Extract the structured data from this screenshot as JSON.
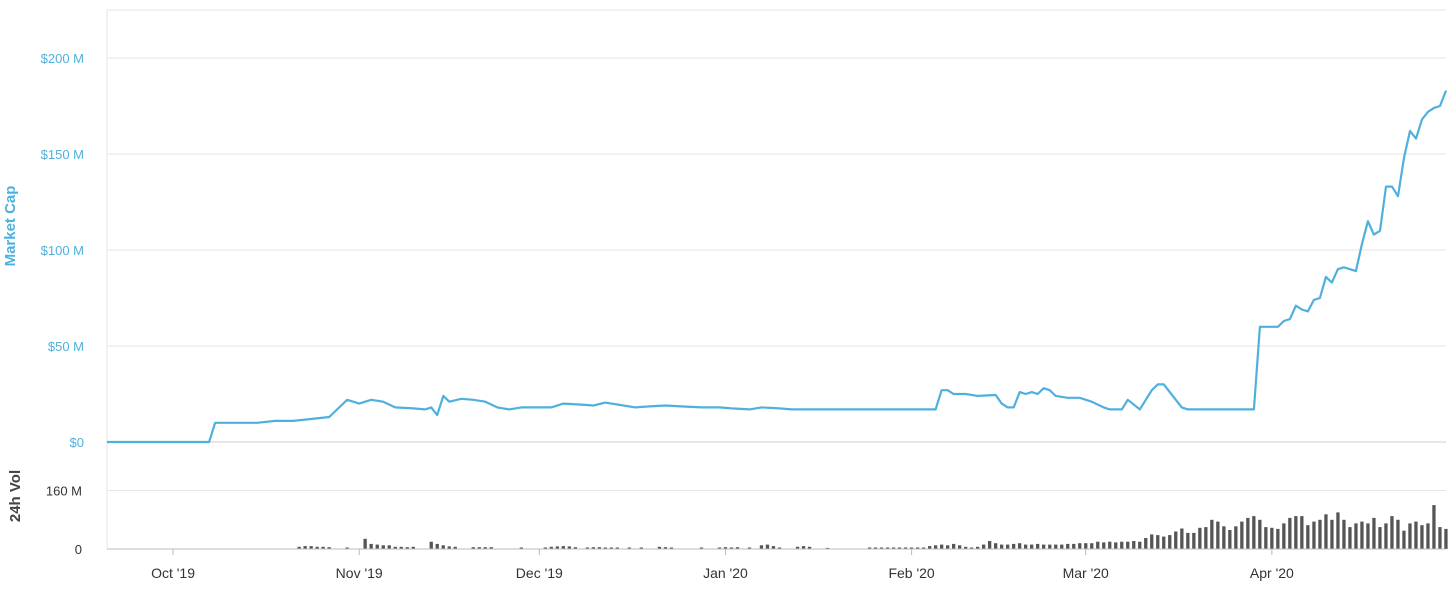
{
  "chart_data": [
    {
      "type": "line",
      "title": "",
      "ylabel": "Market Cap",
      "ylim": [
        0,
        225
      ],
      "y_unit": "$M",
      "y_ticks": [
        {
          "value": 0,
          "label": "$0"
        },
        {
          "value": 50,
          "label": "$50 M"
        },
        {
          "value": 100,
          "label": "$100 M"
        },
        {
          "value": 150,
          "label": "$150 M"
        },
        {
          "value": 200,
          "label": "$200 M"
        }
      ],
      "x_ticks": [
        {
          "date": "2019-10-01",
          "label": "Oct '19"
        },
        {
          "date": "2019-11-01",
          "label": "Nov '19"
        },
        {
          "date": "2019-12-01",
          "label": "Dec '19"
        },
        {
          "date": "2020-01-01",
          "label": "Jan '20"
        },
        {
          "date": "2020-02-01",
          "label": "Feb '20"
        },
        {
          "date": "2020-03-01",
          "label": "Mar '20"
        },
        {
          "date": "2020-04-01",
          "label": "Apr '20"
        }
      ],
      "x_range": [
        "2019-09-20",
        "2020-04-30"
      ],
      "grid": true,
      "color": "#4fb0dd",
      "series": [
        {
          "points": [
            [
              "2019-09-20",
              0
            ],
            [
              "2019-10-07",
              0
            ],
            [
              "2019-10-08",
              10
            ],
            [
              "2019-10-15",
              10
            ],
            [
              "2019-10-18",
              11
            ],
            [
              "2019-10-21",
              11
            ],
            [
              "2019-10-24",
              12
            ],
            [
              "2019-10-27",
              13
            ],
            [
              "2019-10-29",
              19
            ],
            [
              "2019-10-30",
              22
            ],
            [
              "2019-11-01",
              20
            ],
            [
              "2019-11-03",
              22
            ],
            [
              "2019-11-05",
              21
            ],
            [
              "2019-11-07",
              18
            ],
            [
              "2019-11-10",
              17.5
            ],
            [
              "2019-11-12",
              17
            ],
            [
              "2019-11-13",
              18
            ],
            [
              "2019-11-14",
              14
            ],
            [
              "2019-11-15",
              24
            ],
            [
              "2019-11-16",
              21
            ],
            [
              "2019-11-18",
              22.5
            ],
            [
              "2019-11-20",
              22
            ],
            [
              "2019-11-22",
              21
            ],
            [
              "2019-11-24",
              18
            ],
            [
              "2019-11-26",
              17
            ],
            [
              "2019-11-28",
              18
            ],
            [
              "2019-12-01",
              18
            ],
            [
              "2019-12-03",
              18
            ],
            [
              "2019-12-05",
              20
            ],
            [
              "2019-12-08",
              19.5
            ],
            [
              "2019-12-10",
              19
            ],
            [
              "2019-12-12",
              20.5
            ],
            [
              "2019-12-15",
              19
            ],
            [
              "2019-12-17",
              18
            ],
            [
              "2019-12-19",
              18.5
            ],
            [
              "2019-12-22",
              19
            ],
            [
              "2019-12-25",
              18.5
            ],
            [
              "2019-12-28",
              18
            ],
            [
              "2019-12-31",
              18
            ],
            [
              "2020-01-02",
              17.5
            ],
            [
              "2020-01-05",
              17
            ],
            [
              "2020-01-07",
              18
            ],
            [
              "2020-01-10",
              17.5
            ],
            [
              "2020-01-12",
              17
            ],
            [
              "2020-01-15",
              17
            ],
            [
              "2020-01-22",
              17
            ],
            [
              "2020-01-28",
              17
            ],
            [
              "2020-01-30",
              17
            ],
            [
              "2020-02-01",
              17
            ],
            [
              "2020-02-03",
              17
            ],
            [
              "2020-02-05",
              17
            ],
            [
              "2020-02-06",
              27
            ],
            [
              "2020-02-07",
              27
            ],
            [
              "2020-02-08",
              25
            ],
            [
              "2020-02-10",
              25
            ],
            [
              "2020-02-12",
              24
            ],
            [
              "2020-02-15",
              24.5
            ],
            [
              "2020-02-16",
              20
            ],
            [
              "2020-02-17",
              18
            ],
            [
              "2020-02-18",
              18
            ],
            [
              "2020-02-19",
              26
            ],
            [
              "2020-02-20",
              25
            ],
            [
              "2020-02-21",
              26
            ],
            [
              "2020-02-22",
              25
            ],
            [
              "2020-02-23",
              28
            ],
            [
              "2020-02-24",
              27
            ],
            [
              "2020-02-25",
              24
            ],
            [
              "2020-02-27",
              23
            ],
            [
              "2020-02-29",
              23
            ],
            [
              "2020-03-02",
              21
            ],
            [
              "2020-03-04",
              18
            ],
            [
              "2020-03-05",
              17
            ],
            [
              "2020-03-07",
              17
            ],
            [
              "2020-03-08",
              22
            ],
            [
              "2020-03-10",
              17
            ],
            [
              "2020-03-12",
              27
            ],
            [
              "2020-03-13",
              30
            ],
            [
              "2020-03-14",
              30
            ],
            [
              "2020-03-16",
              22
            ],
            [
              "2020-03-17",
              18
            ],
            [
              "2020-03-18",
              17
            ],
            [
              "2020-03-25",
              17
            ],
            [
              "2020-03-29",
              17
            ],
            [
              "2020-03-30",
              60
            ],
            [
              "2020-04-01",
              60
            ],
            [
              "2020-04-02",
              60
            ],
            [
              "2020-04-03",
              63
            ],
            [
              "2020-04-04",
              64
            ],
            [
              "2020-04-05",
              71
            ],
            [
              "2020-04-06",
              69
            ],
            [
              "2020-04-07",
              68
            ],
            [
              "2020-04-08",
              74
            ],
            [
              "2020-04-09",
              75
            ],
            [
              "2020-04-10",
              86
            ],
            [
              "2020-04-11",
              83
            ],
            [
              "2020-04-12",
              90
            ],
            [
              "2020-04-13",
              91
            ],
            [
              "2020-04-14",
              90
            ],
            [
              "2020-04-15",
              89
            ],
            [
              "2020-04-16",
              103
            ],
            [
              "2020-04-17",
              115
            ],
            [
              "2020-04-18",
              108
            ],
            [
              "2020-04-19",
              110
            ],
            [
              "2020-04-20",
              133
            ],
            [
              "2020-04-21",
              133
            ],
            [
              "2020-04-22",
              128
            ],
            [
              "2020-04-23",
              148
            ],
            [
              "2020-04-24",
              162
            ],
            [
              "2020-04-25",
              158
            ],
            [
              "2020-04-26",
              168
            ],
            [
              "2020-04-27",
              172
            ],
            [
              "2020-04-28",
              174
            ],
            [
              "2020-04-29",
              175
            ],
            [
              "2020-04-30",
              183
            ]
          ]
        }
      ]
    },
    {
      "type": "bar",
      "ylabel": "24h Vol",
      "ylim": [
        0,
        290
      ],
      "y_unit": "M",
      "y_ticks": [
        {
          "value": 0,
          "label": "0"
        },
        {
          "value": 160,
          "label": "160 M"
        }
      ],
      "color": "#555555",
      "bars": [
        [
          "2019-10-22",
          6
        ],
        [
          "2019-10-23",
          8
        ],
        [
          "2019-10-24",
          8
        ],
        [
          "2019-10-25",
          6
        ],
        [
          "2019-10-26",
          6
        ],
        [
          "2019-10-27",
          5
        ],
        [
          "2019-10-30",
          4
        ],
        [
          "2019-11-02",
          28
        ],
        [
          "2019-11-03",
          14
        ],
        [
          "2019-11-04",
          12
        ],
        [
          "2019-11-05",
          10
        ],
        [
          "2019-11-06",
          10
        ],
        [
          "2019-11-07",
          6
        ],
        [
          "2019-11-08",
          6
        ],
        [
          "2019-11-09",
          5
        ],
        [
          "2019-11-10",
          6
        ],
        [
          "2019-11-13",
          20
        ],
        [
          "2019-11-14",
          14
        ],
        [
          "2019-11-15",
          10
        ],
        [
          "2019-11-16",
          7
        ],
        [
          "2019-11-17",
          6
        ],
        [
          "2019-11-20",
          5
        ],
        [
          "2019-11-21",
          5
        ],
        [
          "2019-11-22",
          5
        ],
        [
          "2019-11-23",
          5
        ],
        [
          "2019-11-28",
          4
        ],
        [
          "2019-12-02",
          4
        ],
        [
          "2019-12-03",
          6
        ],
        [
          "2019-12-04",
          7
        ],
        [
          "2019-12-05",
          8
        ],
        [
          "2019-12-06",
          7
        ],
        [
          "2019-12-07",
          5
        ],
        [
          "2019-12-09",
          4
        ],
        [
          "2019-12-10",
          5
        ],
        [
          "2019-12-11",
          5
        ],
        [
          "2019-12-12",
          4
        ],
        [
          "2019-12-13",
          4
        ],
        [
          "2019-12-14",
          4
        ],
        [
          "2019-12-16",
          4
        ],
        [
          "2019-12-18",
          4
        ],
        [
          "2019-12-21",
          6
        ],
        [
          "2019-12-22",
          5
        ],
        [
          "2019-12-23",
          4
        ],
        [
          "2019-12-28",
          4
        ],
        [
          "2019-12-31",
          4
        ],
        [
          "2020-01-01",
          5
        ],
        [
          "2020-01-02",
          4
        ],
        [
          "2020-01-03",
          5
        ],
        [
          "2020-01-05",
          4
        ],
        [
          "2020-01-07",
          10
        ],
        [
          "2020-01-08",
          12
        ],
        [
          "2020-01-09",
          8
        ],
        [
          "2020-01-10",
          4
        ],
        [
          "2020-01-13",
          6
        ],
        [
          "2020-01-14",
          8
        ],
        [
          "2020-01-15",
          6
        ],
        [
          "2020-01-18",
          3
        ],
        [
          "2020-01-25",
          4
        ],
        [
          "2020-01-26",
          4
        ],
        [
          "2020-01-27",
          4
        ],
        [
          "2020-01-28",
          4
        ],
        [
          "2020-01-29",
          4
        ],
        [
          "2020-01-30",
          4
        ],
        [
          "2020-01-31",
          4
        ],
        [
          "2020-02-01",
          4
        ],
        [
          "2020-02-02",
          4
        ],
        [
          "2020-02-03",
          4
        ],
        [
          "2020-02-04",
          8
        ],
        [
          "2020-02-05",
          10
        ],
        [
          "2020-02-06",
          12
        ],
        [
          "2020-02-07",
          10
        ],
        [
          "2020-02-08",
          14
        ],
        [
          "2020-02-09",
          10
        ],
        [
          "2020-02-10",
          6
        ],
        [
          "2020-02-11",
          4
        ],
        [
          "2020-02-12",
          6
        ],
        [
          "2020-02-13",
          12
        ],
        [
          "2020-02-14",
          22
        ],
        [
          "2020-02-15",
          16
        ],
        [
          "2020-02-16",
          12
        ],
        [
          "2020-02-17",
          12
        ],
        [
          "2020-02-18",
          14
        ],
        [
          "2020-02-19",
          16
        ],
        [
          "2020-02-20",
          12
        ],
        [
          "2020-02-21",
          12
        ],
        [
          "2020-02-22",
          14
        ],
        [
          "2020-02-23",
          12
        ],
        [
          "2020-02-24",
          12
        ],
        [
          "2020-02-25",
          12
        ],
        [
          "2020-02-26",
          12
        ],
        [
          "2020-02-27",
          14
        ],
        [
          "2020-02-28",
          14
        ],
        [
          "2020-02-29",
          16
        ],
        [
          "2020-03-01",
          16
        ],
        [
          "2020-03-02",
          16
        ],
        [
          "2020-03-03",
          20
        ],
        [
          "2020-03-04",
          18
        ],
        [
          "2020-03-05",
          20
        ],
        [
          "2020-03-06",
          18
        ],
        [
          "2020-03-07",
          20
        ],
        [
          "2020-03-08",
          20
        ],
        [
          "2020-03-09",
          22
        ],
        [
          "2020-03-10",
          20
        ],
        [
          "2020-03-11",
          30
        ],
        [
          "2020-03-12",
          40
        ],
        [
          "2020-03-13",
          38
        ],
        [
          "2020-03-14",
          34
        ],
        [
          "2020-03-15",
          38
        ],
        [
          "2020-03-16",
          48
        ],
        [
          "2020-03-17",
          56
        ],
        [
          "2020-03-18",
          44
        ],
        [
          "2020-03-19",
          44
        ],
        [
          "2020-03-20",
          58
        ],
        [
          "2020-03-21",
          60
        ],
        [
          "2020-03-22",
          80
        ],
        [
          "2020-03-23",
          75
        ],
        [
          "2020-03-24",
          62
        ],
        [
          "2020-03-25",
          52
        ],
        [
          "2020-03-26",
          62
        ],
        [
          "2020-03-27",
          75
        ],
        [
          "2020-03-28",
          85
        ],
        [
          "2020-03-29",
          90
        ],
        [
          "2020-03-30",
          80
        ],
        [
          "2020-03-31",
          60
        ],
        [
          "2020-04-01",
          58
        ],
        [
          "2020-04-02",
          55
        ],
        [
          "2020-04-03",
          70
        ],
        [
          "2020-04-04",
          85
        ],
        [
          "2020-04-05",
          90
        ],
        [
          "2020-04-06",
          90
        ],
        [
          "2020-04-07",
          65
        ],
        [
          "2020-04-08",
          75
        ],
        [
          "2020-04-09",
          80
        ],
        [
          "2020-04-10",
          95
        ],
        [
          "2020-04-11",
          80
        ],
        [
          "2020-04-12",
          100
        ],
        [
          "2020-04-13",
          80
        ],
        [
          "2020-04-14",
          60
        ],
        [
          "2020-04-15",
          70
        ],
        [
          "2020-04-16",
          75
        ],
        [
          "2020-04-17",
          70
        ],
        [
          "2020-04-18",
          85
        ],
        [
          "2020-04-19",
          60
        ],
        [
          "2020-04-20",
          70
        ],
        [
          "2020-04-21",
          90
        ],
        [
          "2020-04-22",
          80
        ],
        [
          "2020-04-23",
          50
        ],
        [
          "2020-04-24",
          70
        ],
        [
          "2020-04-25",
          75
        ],
        [
          "2020-04-26",
          65
        ],
        [
          "2020-04-27",
          70
        ],
        [
          "2020-04-28",
          120
        ],
        [
          "2020-04-29",
          60
        ],
        [
          "2020-04-30",
          55
        ]
      ]
    }
  ]
}
